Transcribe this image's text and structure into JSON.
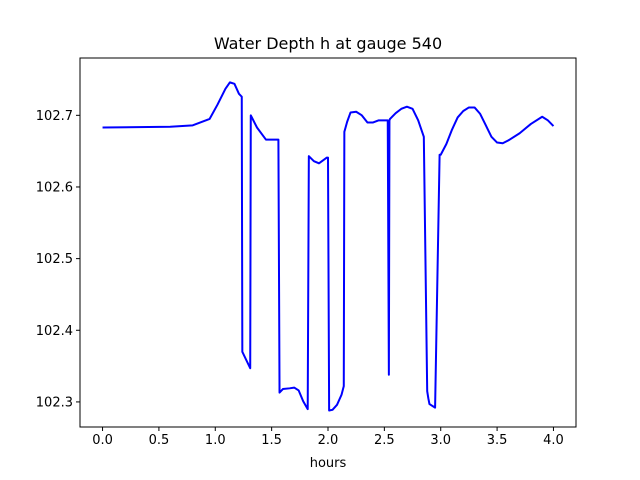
{
  "chart_data": {
    "type": "line",
    "title": "Water Depth h at gauge 540",
    "xlabel": "hours",
    "ylabel": "",
    "xlim": [
      -0.2,
      4.2
    ],
    "ylim": [
      102.265,
      102.78
    ],
    "x_ticks": [
      0.0,
      0.5,
      1.0,
      1.5,
      2.0,
      2.5,
      3.0,
      3.5,
      4.0
    ],
    "x_tick_labels": [
      "0.0",
      "0.5",
      "1.0",
      "1.5",
      "2.0",
      "2.5",
      "3.0",
      "3.5",
      "4.0"
    ],
    "y_ticks": [
      102.3,
      102.4,
      102.5,
      102.6,
      102.7
    ],
    "y_tick_labels": [
      "102.3",
      "102.4",
      "102.5",
      "102.6",
      "102.7"
    ],
    "grid": false,
    "series": [
      {
        "color": "#0000ff",
        "x": [
          0.0,
          0.6,
          0.8,
          0.95,
          1.02,
          1.09,
          1.13,
          1.17,
          1.21,
          1.235,
          1.24,
          1.31,
          1.315,
          1.37,
          1.45,
          1.535,
          1.545,
          1.56,
          1.57,
          1.6,
          1.66,
          1.7,
          1.74,
          1.78,
          1.82,
          1.83,
          1.875,
          1.92,
          1.955,
          1.99,
          2.0,
          2.01,
          2.04,
          2.08,
          2.12,
          2.14,
          2.145,
          2.17,
          2.2,
          2.25,
          2.3,
          2.35,
          2.4,
          2.45,
          2.5,
          2.51,
          2.53,
          2.54,
          2.545,
          2.55,
          2.6,
          2.65,
          2.7,
          2.75,
          2.8,
          2.85,
          2.88,
          2.89,
          2.9,
          2.95,
          2.99,
          3.0,
          3.05,
          3.1,
          3.15,
          3.2,
          3.25,
          3.3,
          3.35,
          3.4,
          3.45,
          3.5,
          3.55,
          3.6,
          3.7,
          3.8,
          3.9,
          3.95,
          4.0
        ],
        "y": [
          102.683,
          102.684,
          102.686,
          102.695,
          102.715,
          102.737,
          102.746,
          102.744,
          102.73,
          102.726,
          102.37,
          102.347,
          102.7,
          102.683,
          102.666,
          102.666,
          102.666,
          102.666,
          102.313,
          102.318,
          102.319,
          102.32,
          102.316,
          102.301,
          102.29,
          102.643,
          102.636,
          102.633,
          102.637,
          102.641,
          102.641,
          102.288,
          102.289,
          102.296,
          102.31,
          102.322,
          102.677,
          102.691,
          102.704,
          102.705,
          102.7,
          102.69,
          102.69,
          102.693,
          102.693,
          102.693,
          102.693,
          102.338,
          102.693,
          102.695,
          102.703,
          102.709,
          102.712,
          102.709,
          102.693,
          102.67,
          102.315,
          102.305,
          102.297,
          102.292,
          102.645,
          102.645,
          102.66,
          102.68,
          102.697,
          102.706,
          102.711,
          102.711,
          102.702,
          102.686,
          102.67,
          102.662,
          102.661,
          102.665,
          102.675,
          102.688,
          102.698,
          102.693,
          102.685
        ]
      }
    ]
  }
}
